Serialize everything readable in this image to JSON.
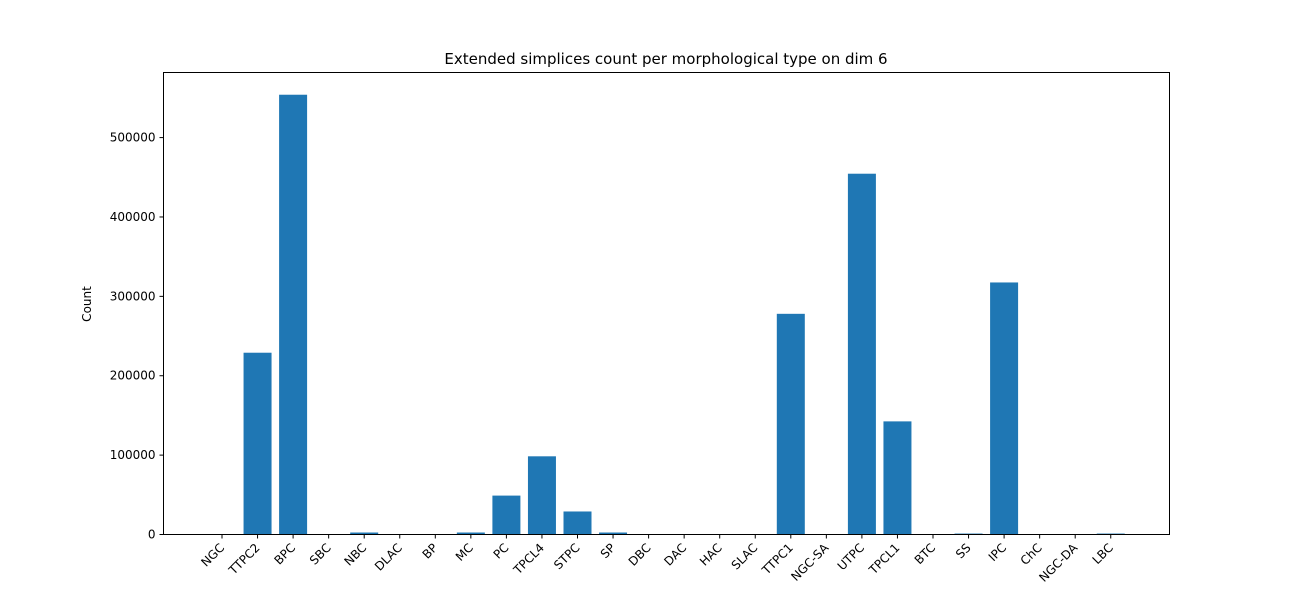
{
  "chart_data": {
    "type": "bar",
    "title": "Extended simplices count per morphological type on dim 6",
    "xlabel": "",
    "ylabel": "Count",
    "categories": [
      "NGC",
      "TTPC2",
      "BPC",
      "SBC",
      "NBC",
      "DLAC",
      "BP",
      "MC",
      "PC",
      "TPCL4",
      "STPC",
      "SP",
      "DBC",
      "DAC",
      "HAC",
      "SLAC",
      "TTPC1",
      "NGC-SA",
      "UTPC",
      "TPCL1",
      "BTC",
      "SS",
      "IPC",
      "ChC",
      "NGC-DA",
      "LBC"
    ],
    "values": [
      0,
      229000,
      554000,
      0,
      2500,
      500,
      0,
      2500,
      49000,
      98500,
      29000,
      2500,
      0,
      0,
      0,
      0,
      278000,
      0,
      454500,
      142500,
      0,
      1200,
      317500,
      0,
      0,
      1200
    ],
    "ylim": [
      0,
      582000
    ],
    "yticks": [
      0,
      100000,
      200000,
      300000,
      400000,
      500000
    ],
    "grid": false,
    "legend": "none",
    "colors": {
      "bar": "#1f77b4",
      "axis": "#000000",
      "background": "#ffffff"
    }
  }
}
